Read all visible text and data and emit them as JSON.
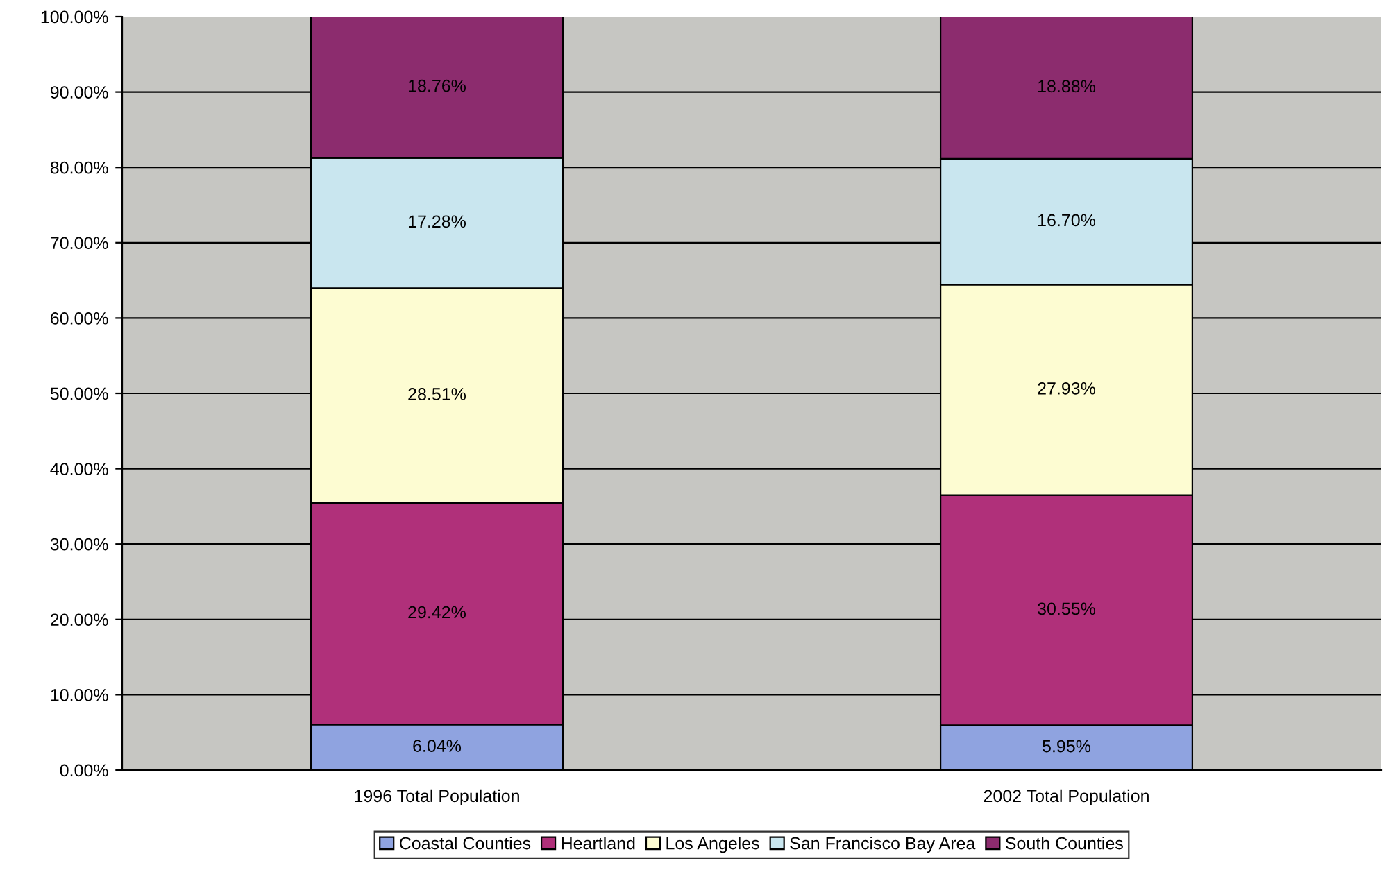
{
  "chart_data": {
    "type": "bar",
    "stacked": true,
    "categories": [
      "1996 Total Population",
      "2002 Total Population"
    ],
    "series": [
      {
        "name": "Coastal Counties",
        "color": "#8fa3e0",
        "values": [
          6.04,
          5.95
        ],
        "value_labels": [
          "6.04%",
          "5.95%"
        ]
      },
      {
        "name": "Heartland",
        "color": "#b0307a",
        "values": [
          29.42,
          30.55
        ],
        "value_labels": [
          "29.42%",
          "30.55%"
        ]
      },
      {
        "name": "Los Angeles",
        "color": "#fdfcd2",
        "values": [
          28.51,
          27.93
        ],
        "value_labels": [
          "28.51%",
          "27.93%"
        ]
      },
      {
        "name": "San Francisco Bay Area",
        "color": "#c9e6ef",
        "values": [
          17.28,
          16.7
        ],
        "value_labels": [
          "17.28%",
          "16.70%"
        ]
      },
      {
        "name": "South Counties",
        "color": "#8c2c6e",
        "values": [
          18.76,
          18.88
        ],
        "value_labels": [
          "18.76%",
          "18.88%"
        ]
      }
    ],
    "ylim": [
      0,
      100
    ],
    "yticks": [
      {
        "value": 0,
        "label": "0.00%"
      },
      {
        "value": 10,
        "label": "10.00%"
      },
      {
        "value": 20,
        "label": "20.00%"
      },
      {
        "value": 30,
        "label": "30.00%"
      },
      {
        "value": 40,
        "label": "40.00%"
      },
      {
        "value": 50,
        "label": "50.00%"
      },
      {
        "value": 60,
        "label": "60.00%"
      },
      {
        "value": 70,
        "label": "70.00%"
      },
      {
        "value": 80,
        "label": "80.00%"
      },
      {
        "value": 90,
        "label": "90.00%"
      },
      {
        "value": 100,
        "label": "100.00%"
      }
    ],
    "grid": "y",
    "legend": "bottom"
  }
}
